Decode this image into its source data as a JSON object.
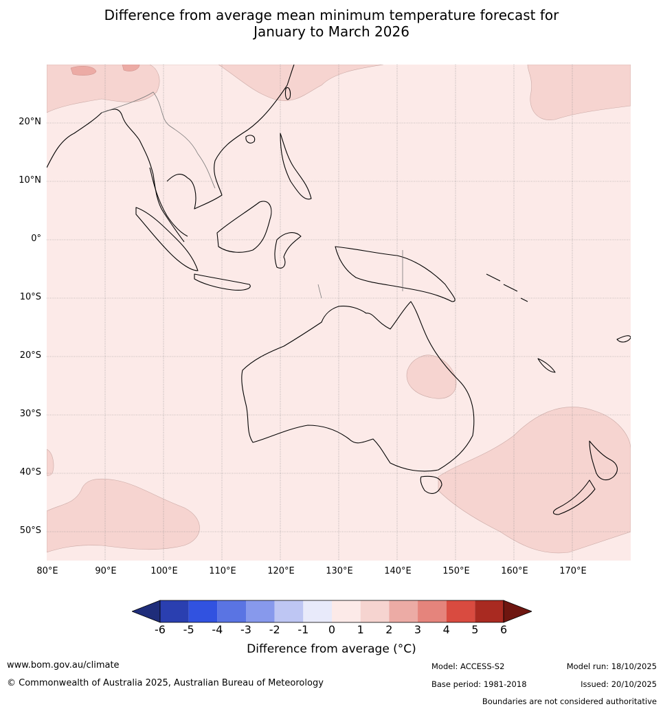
{
  "title": {
    "line1": "Difference from average mean minimum temperature forecast for",
    "line2": "January to March 2026"
  },
  "map": {
    "region": "Maritime Continent, Australia and south-west Pacific",
    "background_anomaly": "0 to 1",
    "latitude_labels": [
      "20°N",
      "10°N",
      "0°",
      "10°S",
      "20°S",
      "30°S",
      "40°S",
      "50°S"
    ],
    "longitude_labels": [
      "80°E",
      "90°E",
      "100°E",
      "110°E",
      "120°E",
      "130°E",
      "140°E",
      "150°E",
      "160°E",
      "170°E"
    ],
    "extent": {
      "lon_min": 80,
      "lon_max": 180,
      "lat_min": -55,
      "lat_max": 30
    },
    "features": [
      "warm-anomaly-north-china",
      "warm-anomaly-north-pacific",
      "warm-anomaly-queensland",
      "warm-anomaly-tasman-sea",
      "warm-anomaly-southern-indian-ocean"
    ]
  },
  "colorbar": {
    "ticks": [
      "-6",
      "-5",
      "-4",
      "-3",
      "-2",
      "-1",
      "0",
      "1",
      "2",
      "3",
      "4",
      "5",
      "6"
    ],
    "colors": [
      "#1f2d7a",
      "#2a3fb0",
      "#3152e0",
      "#5a74e3",
      "#8799ec",
      "#bec6f3",
      "#e8eafa",
      "#fceae8",
      "#f6d4d0",
      "#ecaba5",
      "#e5847c",
      "#d94b40",
      "#a92a21",
      "#6e1610"
    ],
    "label": "Difference from average (°C)"
  },
  "footer": {
    "website": "www.bom.gov.au/climate",
    "copyright": "© Commonwealth of Australia 2025, Australian Bureau of Meteorology",
    "model": "Model: ACCESS-S2",
    "base_period": "Base period: 1981-2018",
    "model_run": "Model run: 18/10/2025",
    "issued": "Issued: 20/10/2025",
    "disclaimer": "Boundaries are not considered authoritative"
  }
}
